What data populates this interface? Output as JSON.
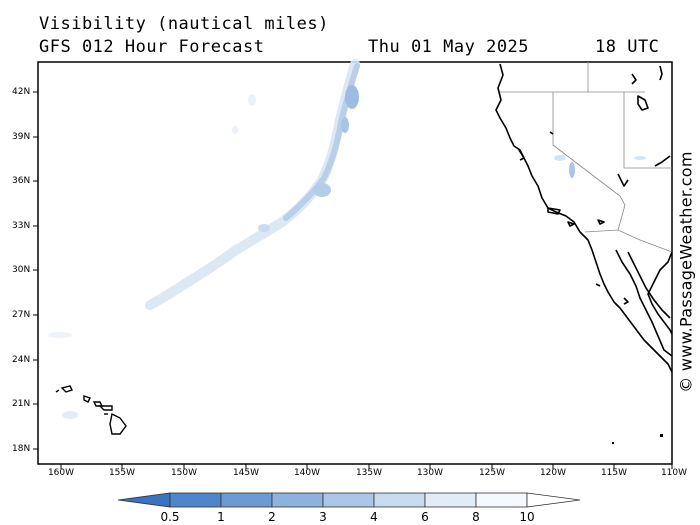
{
  "header": {
    "title": "Visibility (nautical miles)",
    "subtitle": "GFS 012 Hour Forecast",
    "date": "Thu 01 May 2025",
    "time": "18 UTC"
  },
  "map": {
    "lat_labels": [
      "42N",
      "39N",
      "36N",
      "33N",
      "30N",
      "27N",
      "24N",
      "21N",
      "18N"
    ],
    "lon_labels": [
      "160W",
      "155W",
      "150W",
      "145W",
      "140W",
      "135W",
      "130W",
      "125W",
      "120W",
      "115W",
      "110W"
    ],
    "regions": [
      "Pacific Ocean",
      "California",
      "Baja California",
      "Hawaii"
    ]
  },
  "colorbar": {
    "labels": [
      "0.5",
      "1",
      "2",
      "3",
      "4",
      "6",
      "8",
      "10"
    ],
    "colors": [
      "#3a73c0",
      "#4f86cb",
      "#6d9ad4",
      "#8eb2de",
      "#abc6e6",
      "#c8dbef",
      "#e2ecf7",
      "#f5f8fc"
    ],
    "units": "nautical miles"
  },
  "credit": "© www.PassageWeather.com"
}
